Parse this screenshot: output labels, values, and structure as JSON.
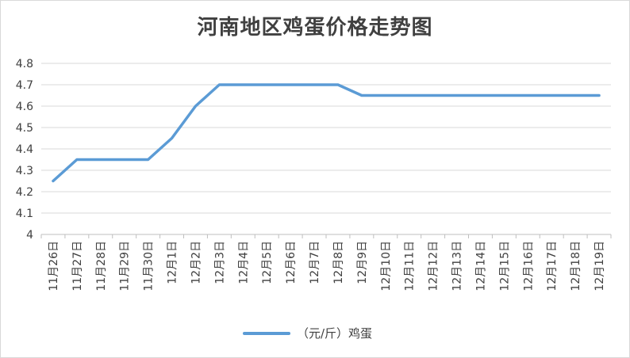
{
  "chart_data": {
    "type": "line",
    "title": "河南地区鸡蛋价格走势图",
    "categories": [
      "11月26日",
      "11月27日",
      "11月28日",
      "11月29日",
      "11月30日",
      "12月1日",
      "12月2日",
      "12月3日",
      "12月4日",
      "12月5日",
      "12月6日",
      "12月7日",
      "12月8日",
      "12月9日",
      "12月10日",
      "12月11日",
      "12月12日",
      "12月13日",
      "12月14日",
      "12月15日",
      "12月16日",
      "12月17日",
      "12月18日",
      "12月19日"
    ],
    "series": [
      {
        "name": "（元/斤）鸡蛋",
        "values": [
          4.25,
          4.35,
          4.35,
          4.35,
          4.35,
          4.45,
          4.6,
          4.7,
          4.7,
          4.7,
          4.7,
          4.7,
          4.7,
          4.65,
          4.65,
          4.65,
          4.65,
          4.65,
          4.65,
          4.65,
          4.65,
          4.65,
          4.65,
          4.65
        ],
        "color": "#5b9bd5"
      }
    ],
    "ylim": [
      4,
      4.8
    ],
    "yticks": [
      "4",
      "4.1",
      "4.2",
      "4.3",
      "4.4",
      "4.5",
      "4.6",
      "4.7",
      "4.8"
    ],
    "grid": true,
    "legend_position": "bottom",
    "xlabel": "",
    "ylabel": ""
  }
}
